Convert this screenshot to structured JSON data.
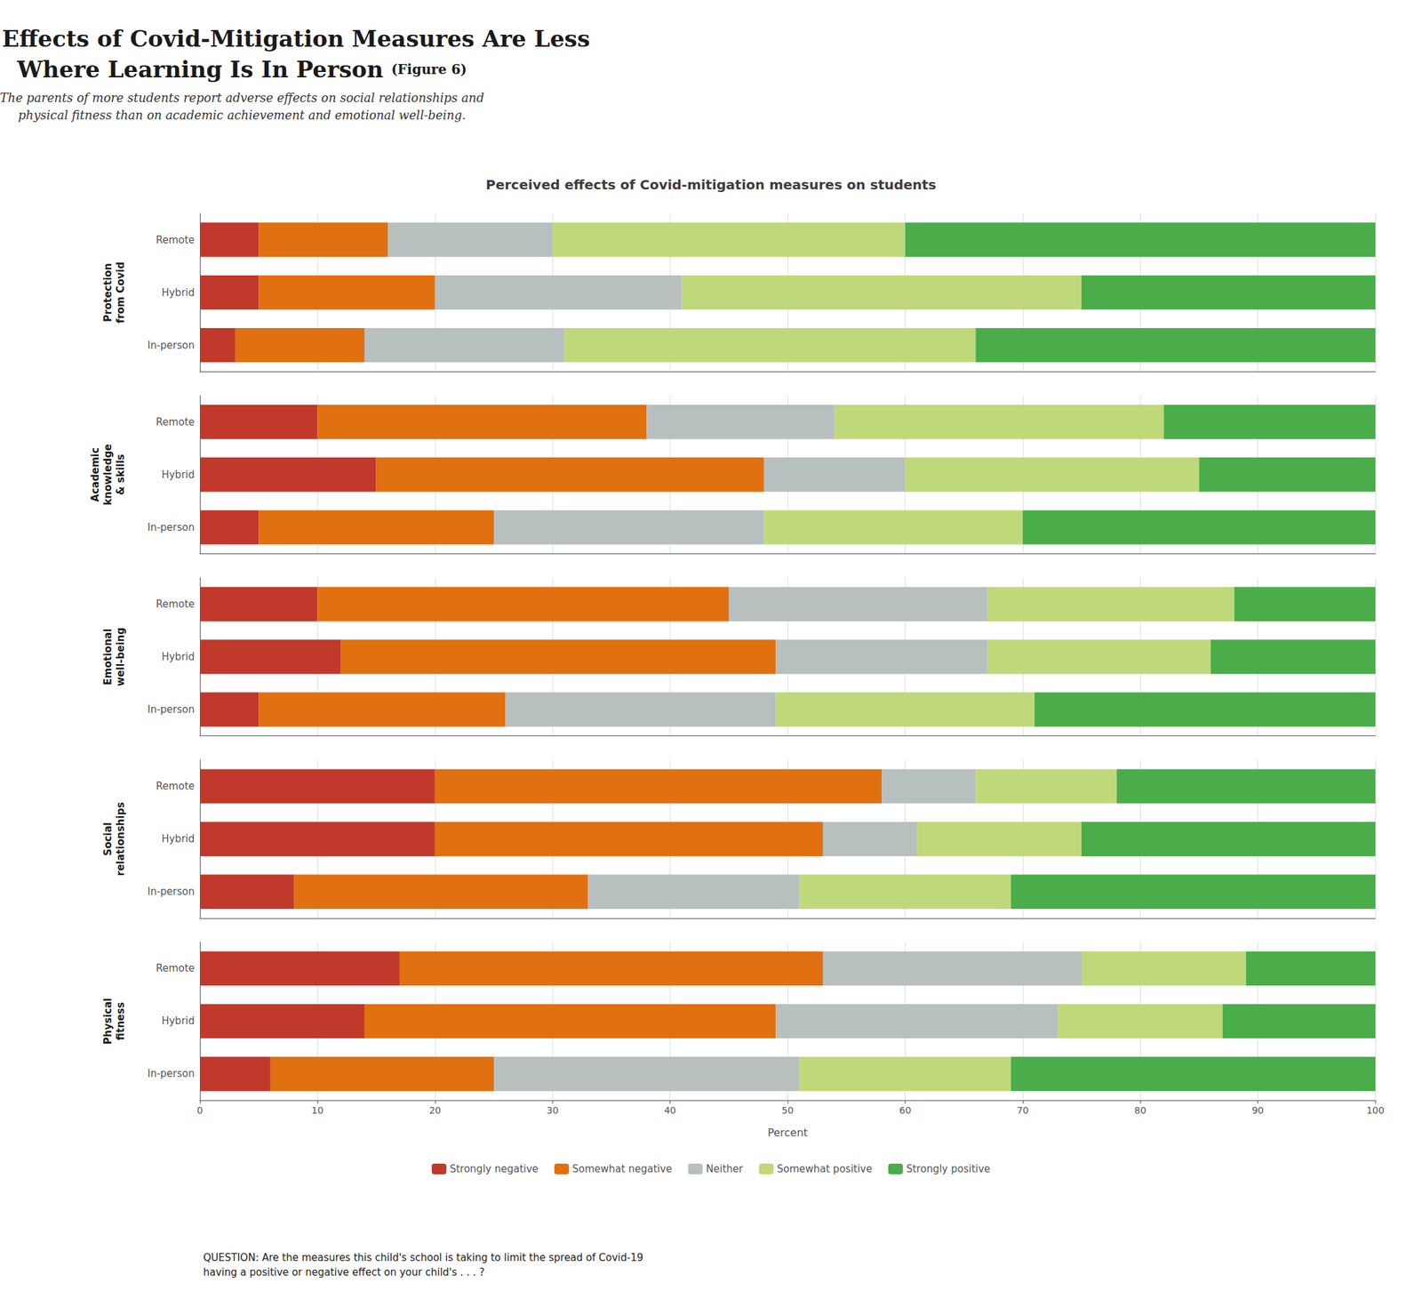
{
  "chart_data": {
    "type": "bar",
    "orientation": "horizontal",
    "stacked": true,
    "title": "Adverse Effects of Covid-Mitigation Measures Are Less\nWhere Learning Is In Person",
    "title_note": "(Figure 6)",
    "subtitle": "The parents of more students report adverse effects on social relationships and\nphysical fitness than on academic achievement and emotional well-being.",
    "plot_title": "Perceived effects of Covid-mitigation measures on students",
    "xlabel": "Percent",
    "footnote": "QUESTION: Are the measures this child's school is taking to limit the spread of Covid-19\nhaving a positive or negative effect on your child's . . . ?",
    "groups": [
      {
        "name": "Protection\nfrom Covid",
        "categories": [
          "Remote",
          "Hybrid",
          "In-person"
        ]
      },
      {
        "name": "Academic\nknowledge\n& skills",
        "categories": [
          "Remote",
          "Hybrid",
          "In-person"
        ]
      },
      {
        "name": "Emotional\nwell-being",
        "categories": [
          "Remote",
          "Hybrid",
          "In-person"
        ]
      },
      {
        "name": "Social\nrelationships",
        "categories": [
          "Remote",
          "Hybrid",
          "In-person"
        ]
      },
      {
        "name": "Physical\nfitness",
        "categories": [
          "Remote",
          "Hybrid",
          "In-person"
        ]
      }
    ],
    "series": [
      {
        "name": "Strongly negative",
        "color": "#c0392b",
        "values": [
          5,
          5,
          3,
          10,
          15,
          5,
          10,
          12,
          5,
          20,
          20,
          8,
          17,
          14,
          6
        ]
      },
      {
        "name": "Somewhat negative",
        "color": "#e07010",
        "values": [
          11,
          15,
          11,
          28,
          33,
          20,
          35,
          37,
          21,
          38,
          33,
          25,
          36,
          35,
          19
        ]
      },
      {
        "name": "Neither",
        "color": "#b8bfbf",
        "values": [
          14,
          21,
          17,
          16,
          12,
          23,
          22,
          18,
          23,
          8,
          8,
          18,
          22,
          24,
          26
        ]
      },
      {
        "name": "Somewhat positive",
        "color": "#bfd97a",
        "values": [
          30,
          34,
          35,
          28,
          25,
          22,
          21,
          19,
          22,
          12,
          14,
          18,
          14,
          14,
          18
        ]
      },
      {
        "name": "Strongly positive",
        "color": "#4aad4a",
        "values": [
          40,
          25,
          34,
          18,
          15,
          30,
          12,
          14,
          29,
          22,
          25,
          31,
          11,
          13,
          31
        ]
      }
    ],
    "xlim": [
      0,
      100
    ],
    "xticks": [
      0,
      10,
      20,
      30,
      40,
      50,
      60,
      70,
      80,
      90,
      100
    ],
    "grid": true,
    "legend": "bottom"
  }
}
